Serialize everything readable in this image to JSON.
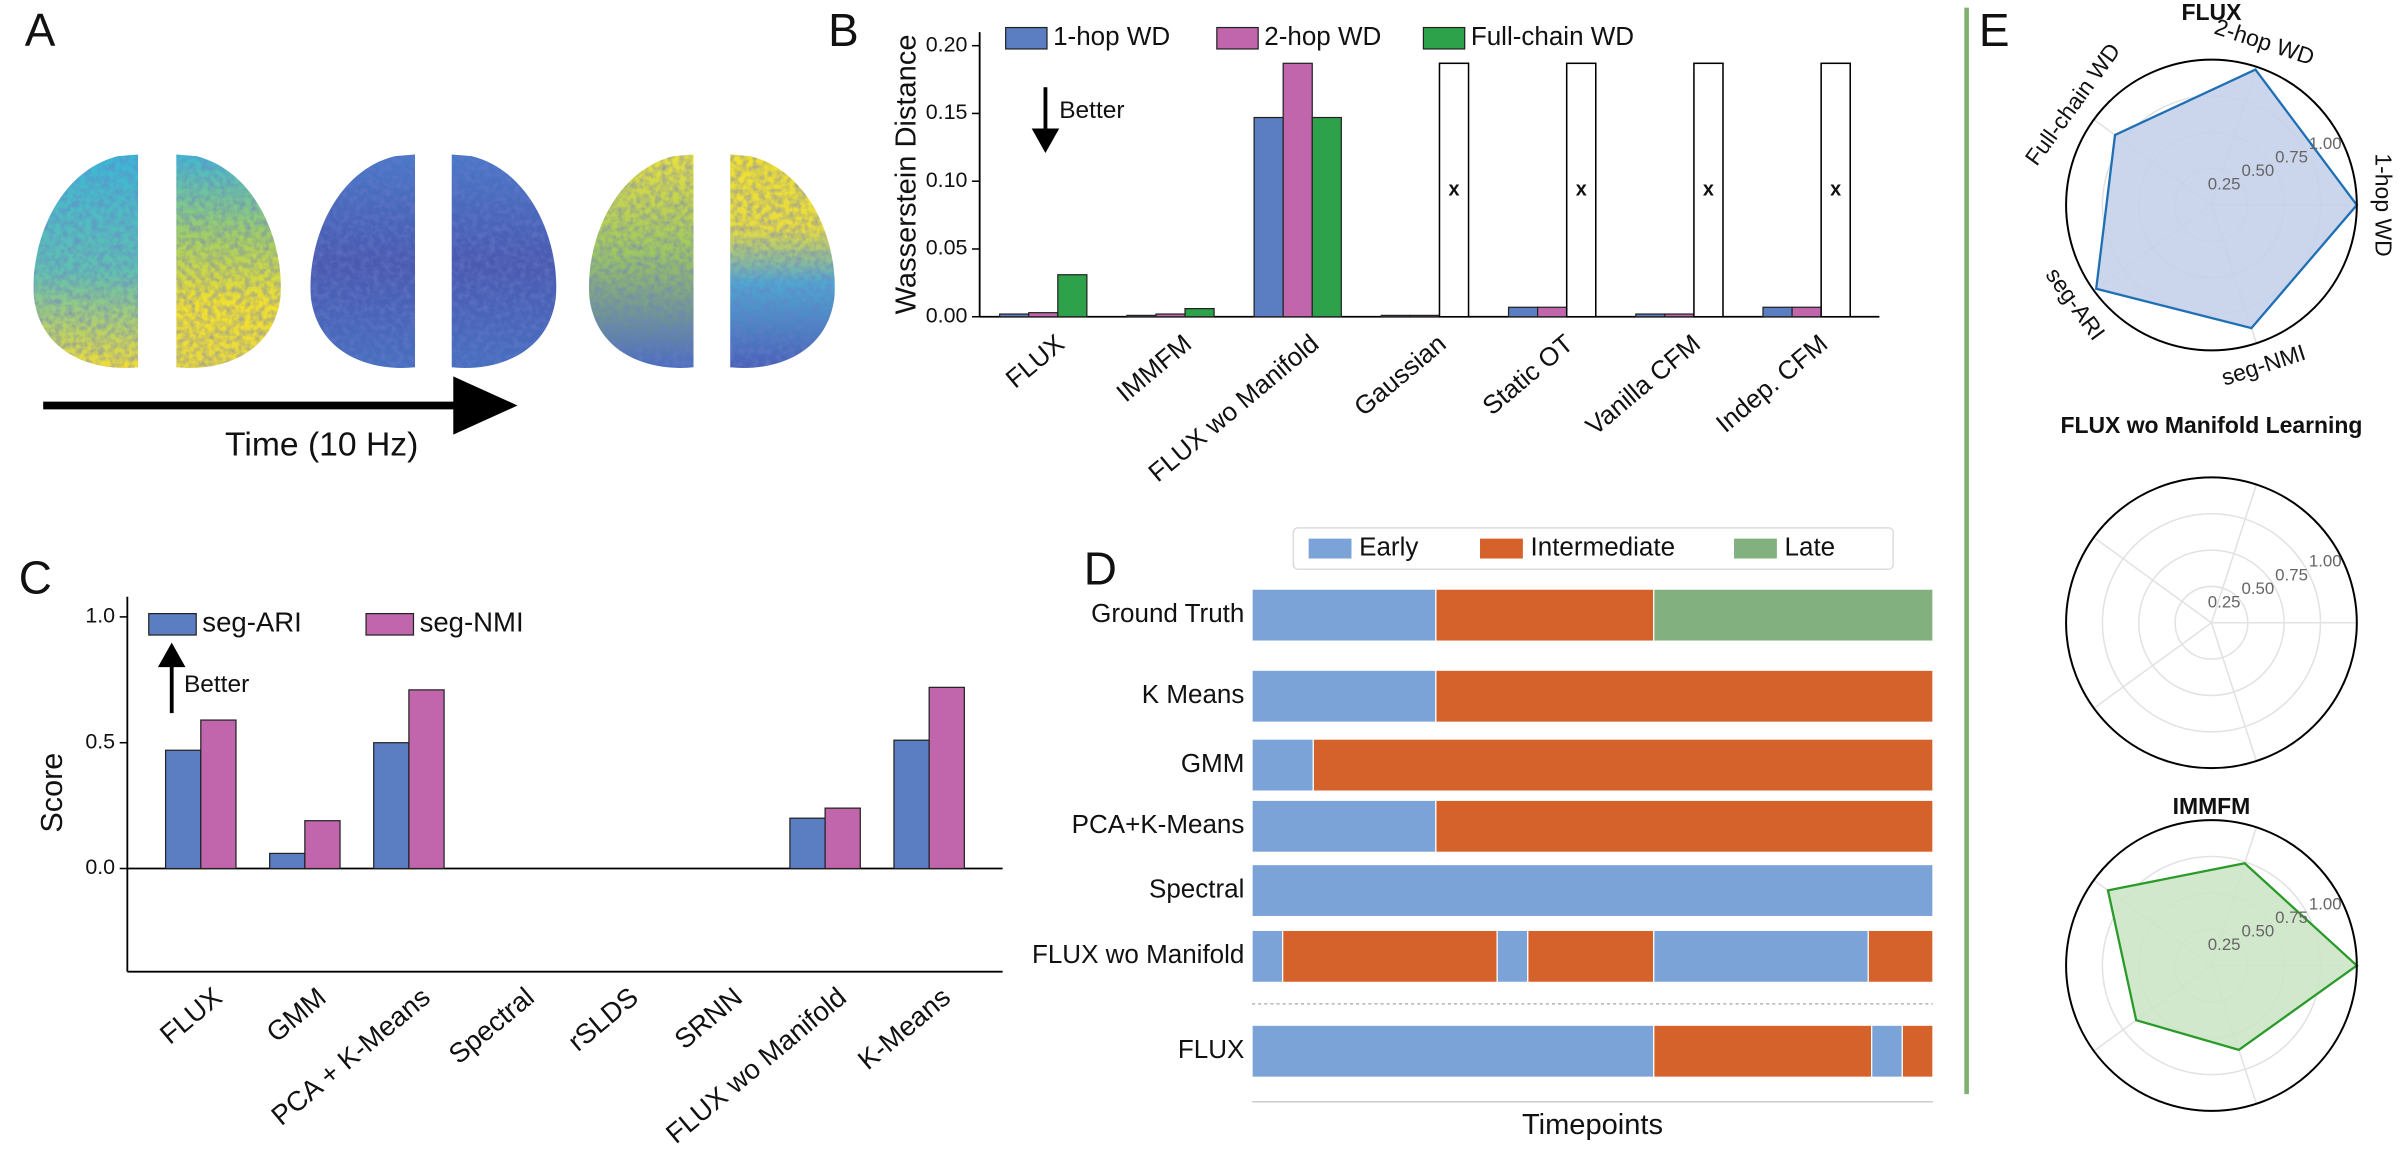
{
  "panel_labels": [
    "A",
    "B",
    "C",
    "D",
    "E"
  ],
  "panel_a": {
    "xlabel": "Time (10 Hz)"
  },
  "chart_data": [
    {
      "type": "bar",
      "ylabel": "Wasserstein Distance",
      "annotation": "Better",
      "categories": [
        "FLUX",
        "IMMFM",
        "FLUX wo Manifold",
        "Gaussian",
        "Static OT",
        "Vanilla CFM",
        "Indep. CFM"
      ],
      "series": [
        {
          "name": "1-hop WD",
          "color": "#5b7dc2",
          "values": [
            0.002,
            0.001,
            0.147,
            0.001,
            0.007,
            0.002,
            0.007
          ]
        },
        {
          "name": "2-hop WD",
          "color": "#c166ac",
          "values": [
            0.003,
            0.002,
            0.187,
            0.001,
            0.007,
            0.002,
            0.007
          ]
        },
        {
          "name": "Full-chain WD",
          "color": "#2ea24a",
          "values": [
            0.031,
            0.006,
            0.147,
            null,
            null,
            null,
            null
          ]
        }
      ],
      "placeholder": {
        "value": 0.187,
        "label": "x",
        "color": "#ffffff"
      },
      "ylim": [
        0,
        0.21
      ],
      "yticks": [
        {
          "value": 0,
          "label": "0.00"
        },
        {
          "value": 0.05,
          "label": "0.05"
        },
        {
          "value": 0.1,
          "label": "0.10"
        },
        {
          "value": 0.15,
          "label": "0.15"
        },
        {
          "value": 0.2,
          "label": "0.20"
        }
      ]
    },
    {
      "type": "bar",
      "ylabel": "Score",
      "annotation": "Better",
      "categories": [
        "FLUX",
        "GMM",
        "PCA + K-Means",
        "Spectral",
        "rSLDS",
        "SRNN",
        "FLUX wo Manifold",
        "K-Means"
      ],
      "series": [
        {
          "name": "seg-ARI",
          "color": "#5b7dc2",
          "values": [
            0.47,
            0.06,
            0.5,
            0,
            0,
            0,
            0.2,
            0.51
          ]
        },
        {
          "name": "seg-NMI",
          "color": "#c166ac",
          "values": [
            0.59,
            0.19,
            0.71,
            0,
            0,
            0,
            0.24,
            0.72
          ]
        }
      ],
      "ylim": [
        -0.41,
        1.08
      ],
      "yticks": [
        {
          "value": 0,
          "label": "0.0"
        },
        0.5,
        {
          "value": 1,
          "label": "1.0"
        }
      ]
    },
    {
      "type": "segments",
      "xlabel": "Timepoints",
      "xlim": [
        0,
        100
      ],
      "states": [
        {
          "name": "Early",
          "color": "#7ba3d7"
        },
        {
          "name": "Intermediate",
          "color": "#d5612b"
        },
        {
          "name": "Late",
          "color": "#82b07f"
        }
      ],
      "rows": [
        {
          "name": "Ground Truth",
          "states": [
            0,
            1,
            2
          ],
          "lengths": [
            27,
            32,
            41
          ]
        },
        {
          "name": "K Means",
          "states": [
            0,
            1
          ],
          "lengths": [
            27,
            73
          ]
        },
        {
          "name": "GMM",
          "states": [
            0,
            1
          ],
          "lengths": [
            9,
            91
          ]
        },
        {
          "name": "PCA+K-Means",
          "states": [
            0,
            1
          ],
          "lengths": [
            27,
            73
          ]
        },
        {
          "name": "Spectral",
          "states": [
            0
          ],
          "lengths": [
            100
          ]
        },
        {
          "name": "FLUX wo Manifold",
          "states": [
            0,
            1,
            0,
            1,
            0,
            1
          ],
          "lengths": [
            4.5,
            31.5,
            4.5,
            18.5,
            31.5,
            9.5
          ]
        },
        {
          "name": "FLUX",
          "states": [
            0,
            1,
            0,
            1
          ],
          "lengths": [
            59,
            32,
            4.5,
            4.5
          ]
        }
      ]
    },
    {
      "type": "radar",
      "title": "FLUX",
      "axes": [
        "1-hop WD",
        "2-hop WD",
        "Full-chain WD",
        "seg-ARI",
        "seg-NMI"
      ],
      "values": [
        1.0,
        0.98,
        0.82,
        0.98,
        0.89
      ],
      "color": "#1f6fb4",
      "fill": "#c5d0ea",
      "rlim": [
        0,
        1
      ],
      "rticks": [
        0.25,
        {
          "value": 0.5,
          "label": "0.50"
        },
        0.75,
        {
          "value": 1,
          "label": "1.00"
        }
      ]
    },
    {
      "type": "radar",
      "title": "FLUX wo Manifold Learning",
      "values": [
        0,
        0,
        0,
        0,
        0
      ],
      "color": "#1f6fb4",
      "fill": "#c5d0ea",
      "rlim": [
        0,
        1
      ],
      "rticks": [
        0.25,
        {
          "value": 0.5,
          "label": "0.50"
        },
        0.75,
        {
          "value": 1,
          "label": "1.00"
        }
      ]
    },
    {
      "type": "radar",
      "title": "IMMFM",
      "values": [
        1.0,
        0.74,
        0.88,
        0.64,
        0.61
      ],
      "color": "#2a9a2a",
      "fill": "#cde5c6",
      "rlim": [
        0,
        1
      ],
      "rticks": [
        0.25,
        {
          "value": 0.5,
          "label": "0.50"
        },
        0.75,
        {
          "value": 1,
          "label": "1.00"
        }
      ]
    }
  ]
}
